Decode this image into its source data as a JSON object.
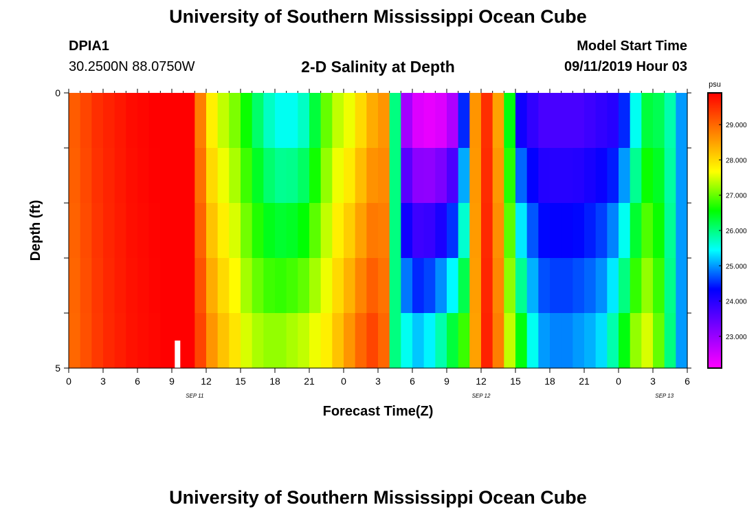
{
  "header": {
    "title": "University of Southern Mississippi Ocean Cube",
    "station_id": "DPIA1",
    "station_coords": "30.2500N 88.0750W",
    "plot_title": "2-D Salinity at Depth",
    "model_start_label": "Model Start Time",
    "model_start_value": "09/11/2019 Hour 03"
  },
  "footer": {
    "title": "University of Southern Mississippi Ocean Cube"
  },
  "chart_data": {
    "type": "heatmap",
    "title": "2-D Salinity at Depth",
    "xlabel": "Forecast Time(Z)",
    "ylabel": "Depth (ft)",
    "colorbar_unit": "psu",
    "ylim": [
      0,
      5
    ],
    "y_tick_labels": [
      "0",
      "5"
    ],
    "x_tick_labels": [
      "0",
      "3",
      "6",
      "9",
      "12",
      "15",
      "18",
      "21",
      "0",
      "3",
      "6",
      "9",
      "12",
      "15",
      "18",
      "21",
      "0",
      "3",
      "6"
    ],
    "date_labels": [
      {
        "label": "SEP 11",
        "hour_index": 11
      },
      {
        "label": "SEP 12",
        "hour_index": 36
      },
      {
        "label": "SEP 13",
        "hour_index": 52
      }
    ],
    "colorbar_ticks": [
      "29.000",
      "28.000",
      "27.000",
      "26.000",
      "25.000",
      "24.000",
      "23.000"
    ],
    "clim": [
      22.1,
      29.9
    ],
    "current_time_hour": 9.5,
    "depth_rows": 5,
    "hours": 54,
    "salinity_profiles": {
      "hours": [
        0,
        1,
        2,
        3,
        4,
        5,
        6,
        7,
        8,
        9,
        10,
        11,
        12,
        13,
        14,
        15,
        16,
        17,
        18,
        19,
        20,
        21,
        22,
        23,
        24,
        25,
        26,
        27,
        28,
        29,
        30,
        31,
        32,
        33,
        34,
        35,
        36,
        37,
        38,
        39,
        40,
        41,
        42,
        43,
        44,
        45,
        46,
        47,
        48,
        49,
        50,
        51,
        52,
        53
      ],
      "surface": [
        29.1,
        29.3,
        29.5,
        29.6,
        29.7,
        29.8,
        29.85,
        29.9,
        29.9,
        29.9,
        29.9,
        28.8,
        27.8,
        27.4,
        27.1,
        26.6,
        26.1,
        25.7,
        25.5,
        25.5,
        25.7,
        26.3,
        27.0,
        27.4,
        27.6,
        28.0,
        28.4,
        28.6,
        26.0,
        22.9,
        22.4,
        22.3,
        22.4,
        22.8,
        24.5,
        28.6,
        29.5,
        28.5,
        26.5,
        24.2,
        23.9,
        23.7,
        23.7,
        23.7,
        23.7,
        23.8,
        23.9,
        24.0,
        24.5,
        25.5,
        26.3,
        26.2,
        25.8,
        25.0
      ],
      "bottom": [
        29.0,
        29.2,
        29.4,
        29.55,
        29.65,
        29.75,
        29.8,
        29.85,
        29.9,
        29.9,
        29.9,
        29.3,
        28.6,
        28.2,
        27.9,
        27.5,
        27.3,
        27.2,
        27.2,
        27.3,
        27.4,
        27.6,
        27.8,
        28.2,
        28.6,
        29.0,
        29.3,
        29.0,
        26.0,
        25.5,
        25.2,
        25.4,
        25.8,
        26.3,
        26.8,
        28.5,
        29.6,
        28.8,
        27.4,
        26.5,
        25.5,
        25.0,
        24.9,
        24.9,
        25.0,
        25.1,
        25.3,
        25.8,
        26.5,
        27.2,
        27.5,
        27.0,
        26.0,
        25.0
      ]
    }
  },
  "colors": {
    "colormap": [
      "#ff00ff",
      "#8000ff",
      "#0000ff",
      "#00ffff",
      "#00ff00",
      "#ffff00",
      "#ff8000",
      "#ff0000"
    ],
    "marker": "#ffffff"
  }
}
